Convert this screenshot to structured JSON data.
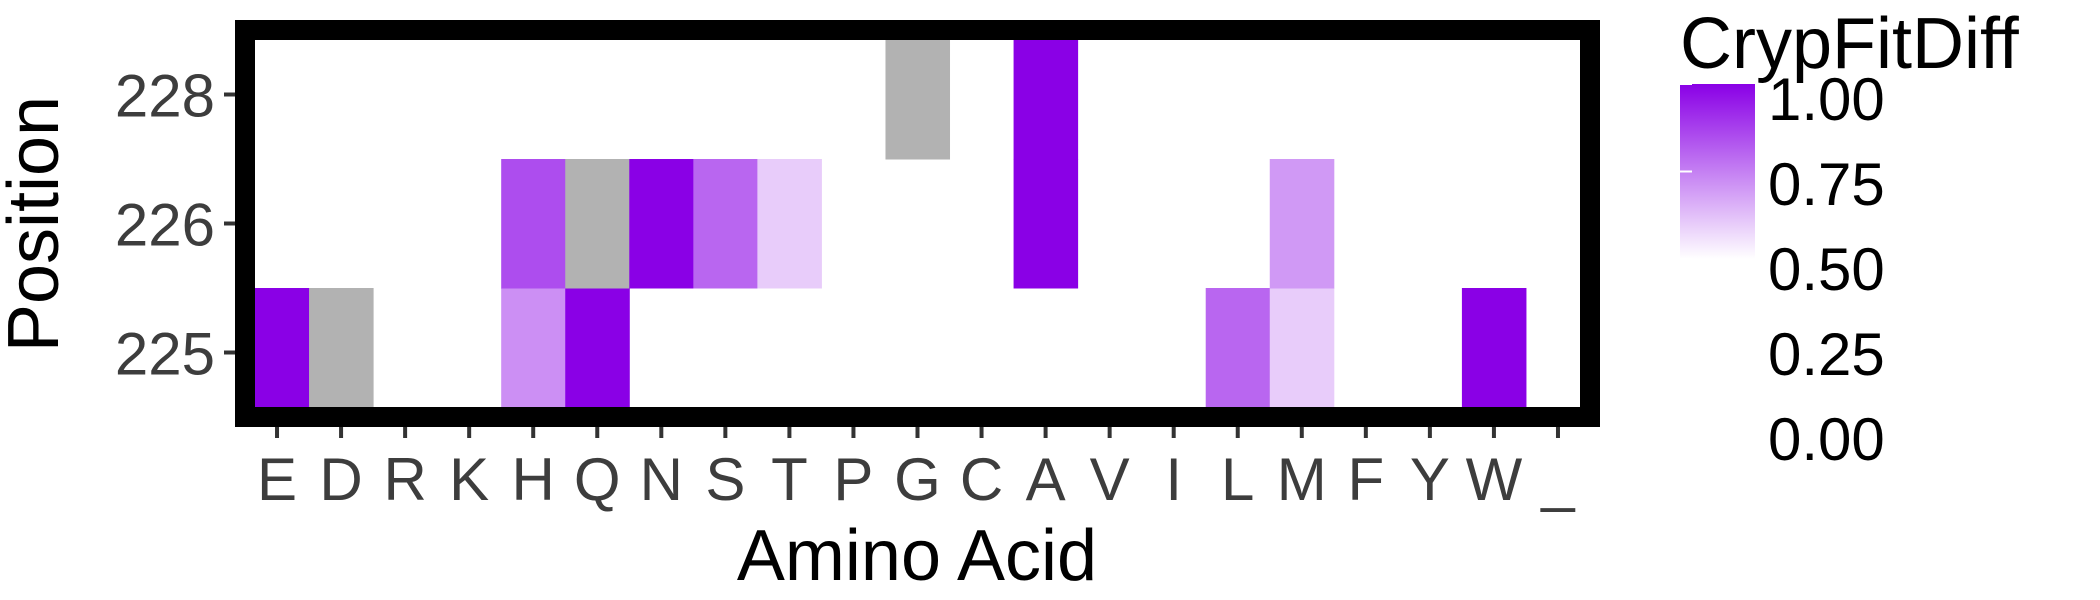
{
  "chart_data": {
    "type": "heatmap",
    "xlabel": "Amino Acid",
    "ylabel": "Position",
    "x_categories": [
      "E",
      "D",
      "R",
      "K",
      "H",
      "Q",
      "N",
      "S",
      "T",
      "P",
      "G",
      "C",
      "A",
      "V",
      "I",
      "L",
      "M",
      "F",
      "Y",
      "W",
      "_"
    ],
    "y_categories": [
      "225",
      "226",
      "228"
    ],
    "cells": [
      {
        "x": "E",
        "y": "225",
        "value": 1.0
      },
      {
        "x": "D",
        "y": "225",
        "value": null
      },
      {
        "x": "H",
        "y": "225",
        "value": 0.72
      },
      {
        "x": "Q",
        "y": "225",
        "value": 1.0
      },
      {
        "x": "L",
        "y": "225",
        "value": 0.8
      },
      {
        "x": "M",
        "y": "225",
        "value": 0.6
      },
      {
        "x": "W",
        "y": "225",
        "value": 1.0
      },
      {
        "x": "H",
        "y": "226",
        "value": 0.85
      },
      {
        "x": "Q",
        "y": "226",
        "value": null
      },
      {
        "x": "N",
        "y": "226",
        "value": 1.0
      },
      {
        "x": "S",
        "y": "226",
        "value": 0.8
      },
      {
        "x": "T",
        "y": "226",
        "value": 0.6
      },
      {
        "x": "A",
        "y": "226",
        "value": 1.0
      },
      {
        "x": "M",
        "y": "226",
        "value": 0.7
      },
      {
        "x": "G",
        "y": "228",
        "value": null
      },
      {
        "x": "A",
        "y": "228",
        "value": 1.0
      }
    ],
    "legend": {
      "title": "CrypFitDiff",
      "ticks": [
        "1.00",
        "0.75",
        "0.50",
        "0.25",
        "0.00"
      ],
      "placement": "right"
    },
    "colors": {
      "low": "#ffffff",
      "high": "#8a00e6",
      "na": "#b2b2b2",
      "gradient_from": 0.5,
      "gradient_to": 1.0
    },
    "grid": false
  }
}
